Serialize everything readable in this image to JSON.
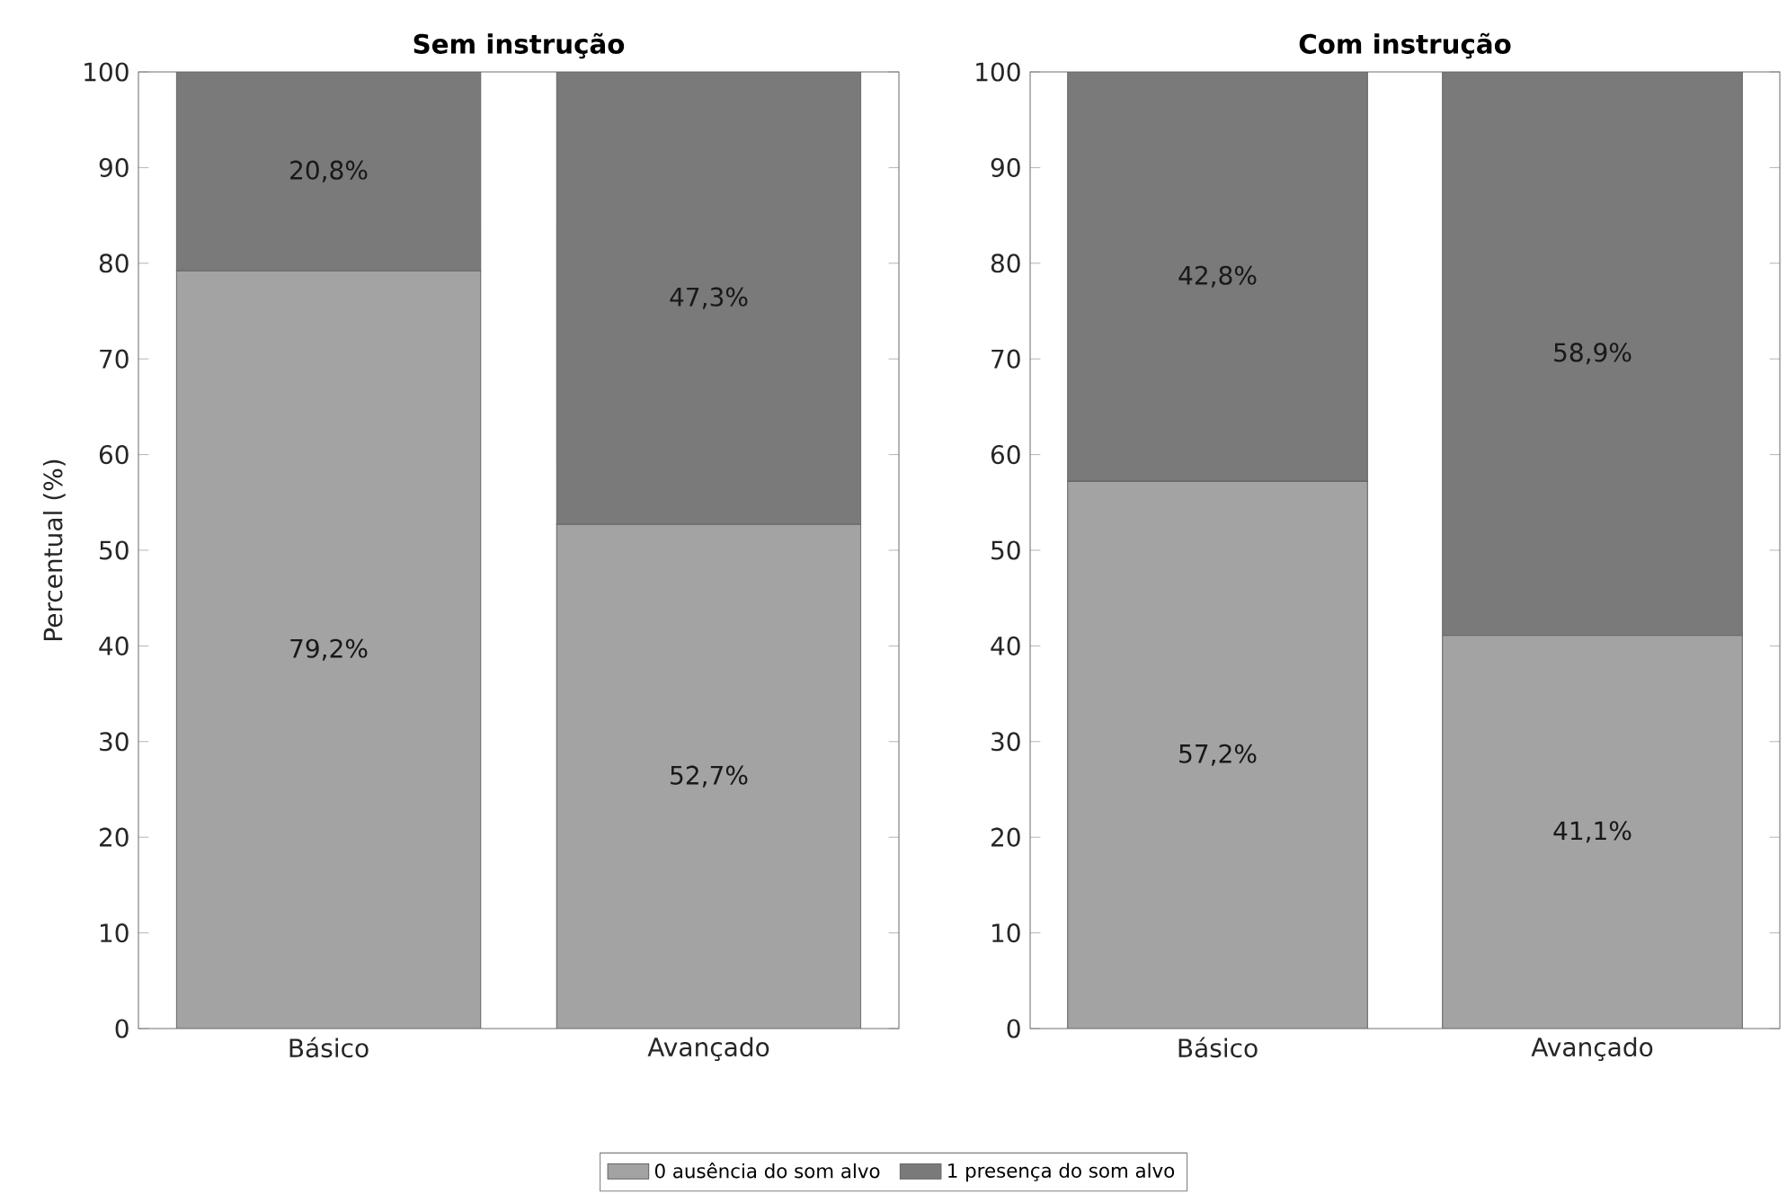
{
  "chart_data": [
    {
      "type": "bar",
      "title": "Sem instrução",
      "ylabel": "Percentual (%)",
      "categories": [
        "Básico",
        "Avançado"
      ],
      "stacked": true,
      "ylim": [
        0,
        100
      ],
      "yticks": [
        0,
        10,
        20,
        30,
        40,
        50,
        60,
        70,
        80,
        90,
        100
      ],
      "legend": "bottom",
      "series": [
        {
          "name": "0 ausência do som alvo",
          "color": "#a3a3a3",
          "values": [
            79.2,
            52.7
          ],
          "value_labels": [
            "79,2%",
            "52,7%"
          ]
        },
        {
          "name": "1 presença do som alvo",
          "color": "#7a7a7a",
          "values": [
            20.8,
            47.3
          ],
          "value_labels": [
            "20,8%",
            "47,3%"
          ]
        }
      ]
    },
    {
      "type": "bar",
      "title": "Com instrução",
      "categories": [
        "Básico",
        "Avançado"
      ],
      "stacked": true,
      "ylim": [
        0,
        100
      ],
      "yticks": [
        0,
        10,
        20,
        30,
        40,
        50,
        60,
        70,
        80,
        90,
        100
      ],
      "series": [
        {
          "color": "#a3a3a3",
          "values": [
            57.2,
            41.1
          ],
          "value_labels": [
            "57,2%",
            "41,1%"
          ]
        },
        {
          "color": "#7a7a7a",
          "values": [
            42.8,
            58.9
          ],
          "value_labels": [
            "42,8%",
            "58,9%"
          ]
        }
      ]
    }
  ]
}
